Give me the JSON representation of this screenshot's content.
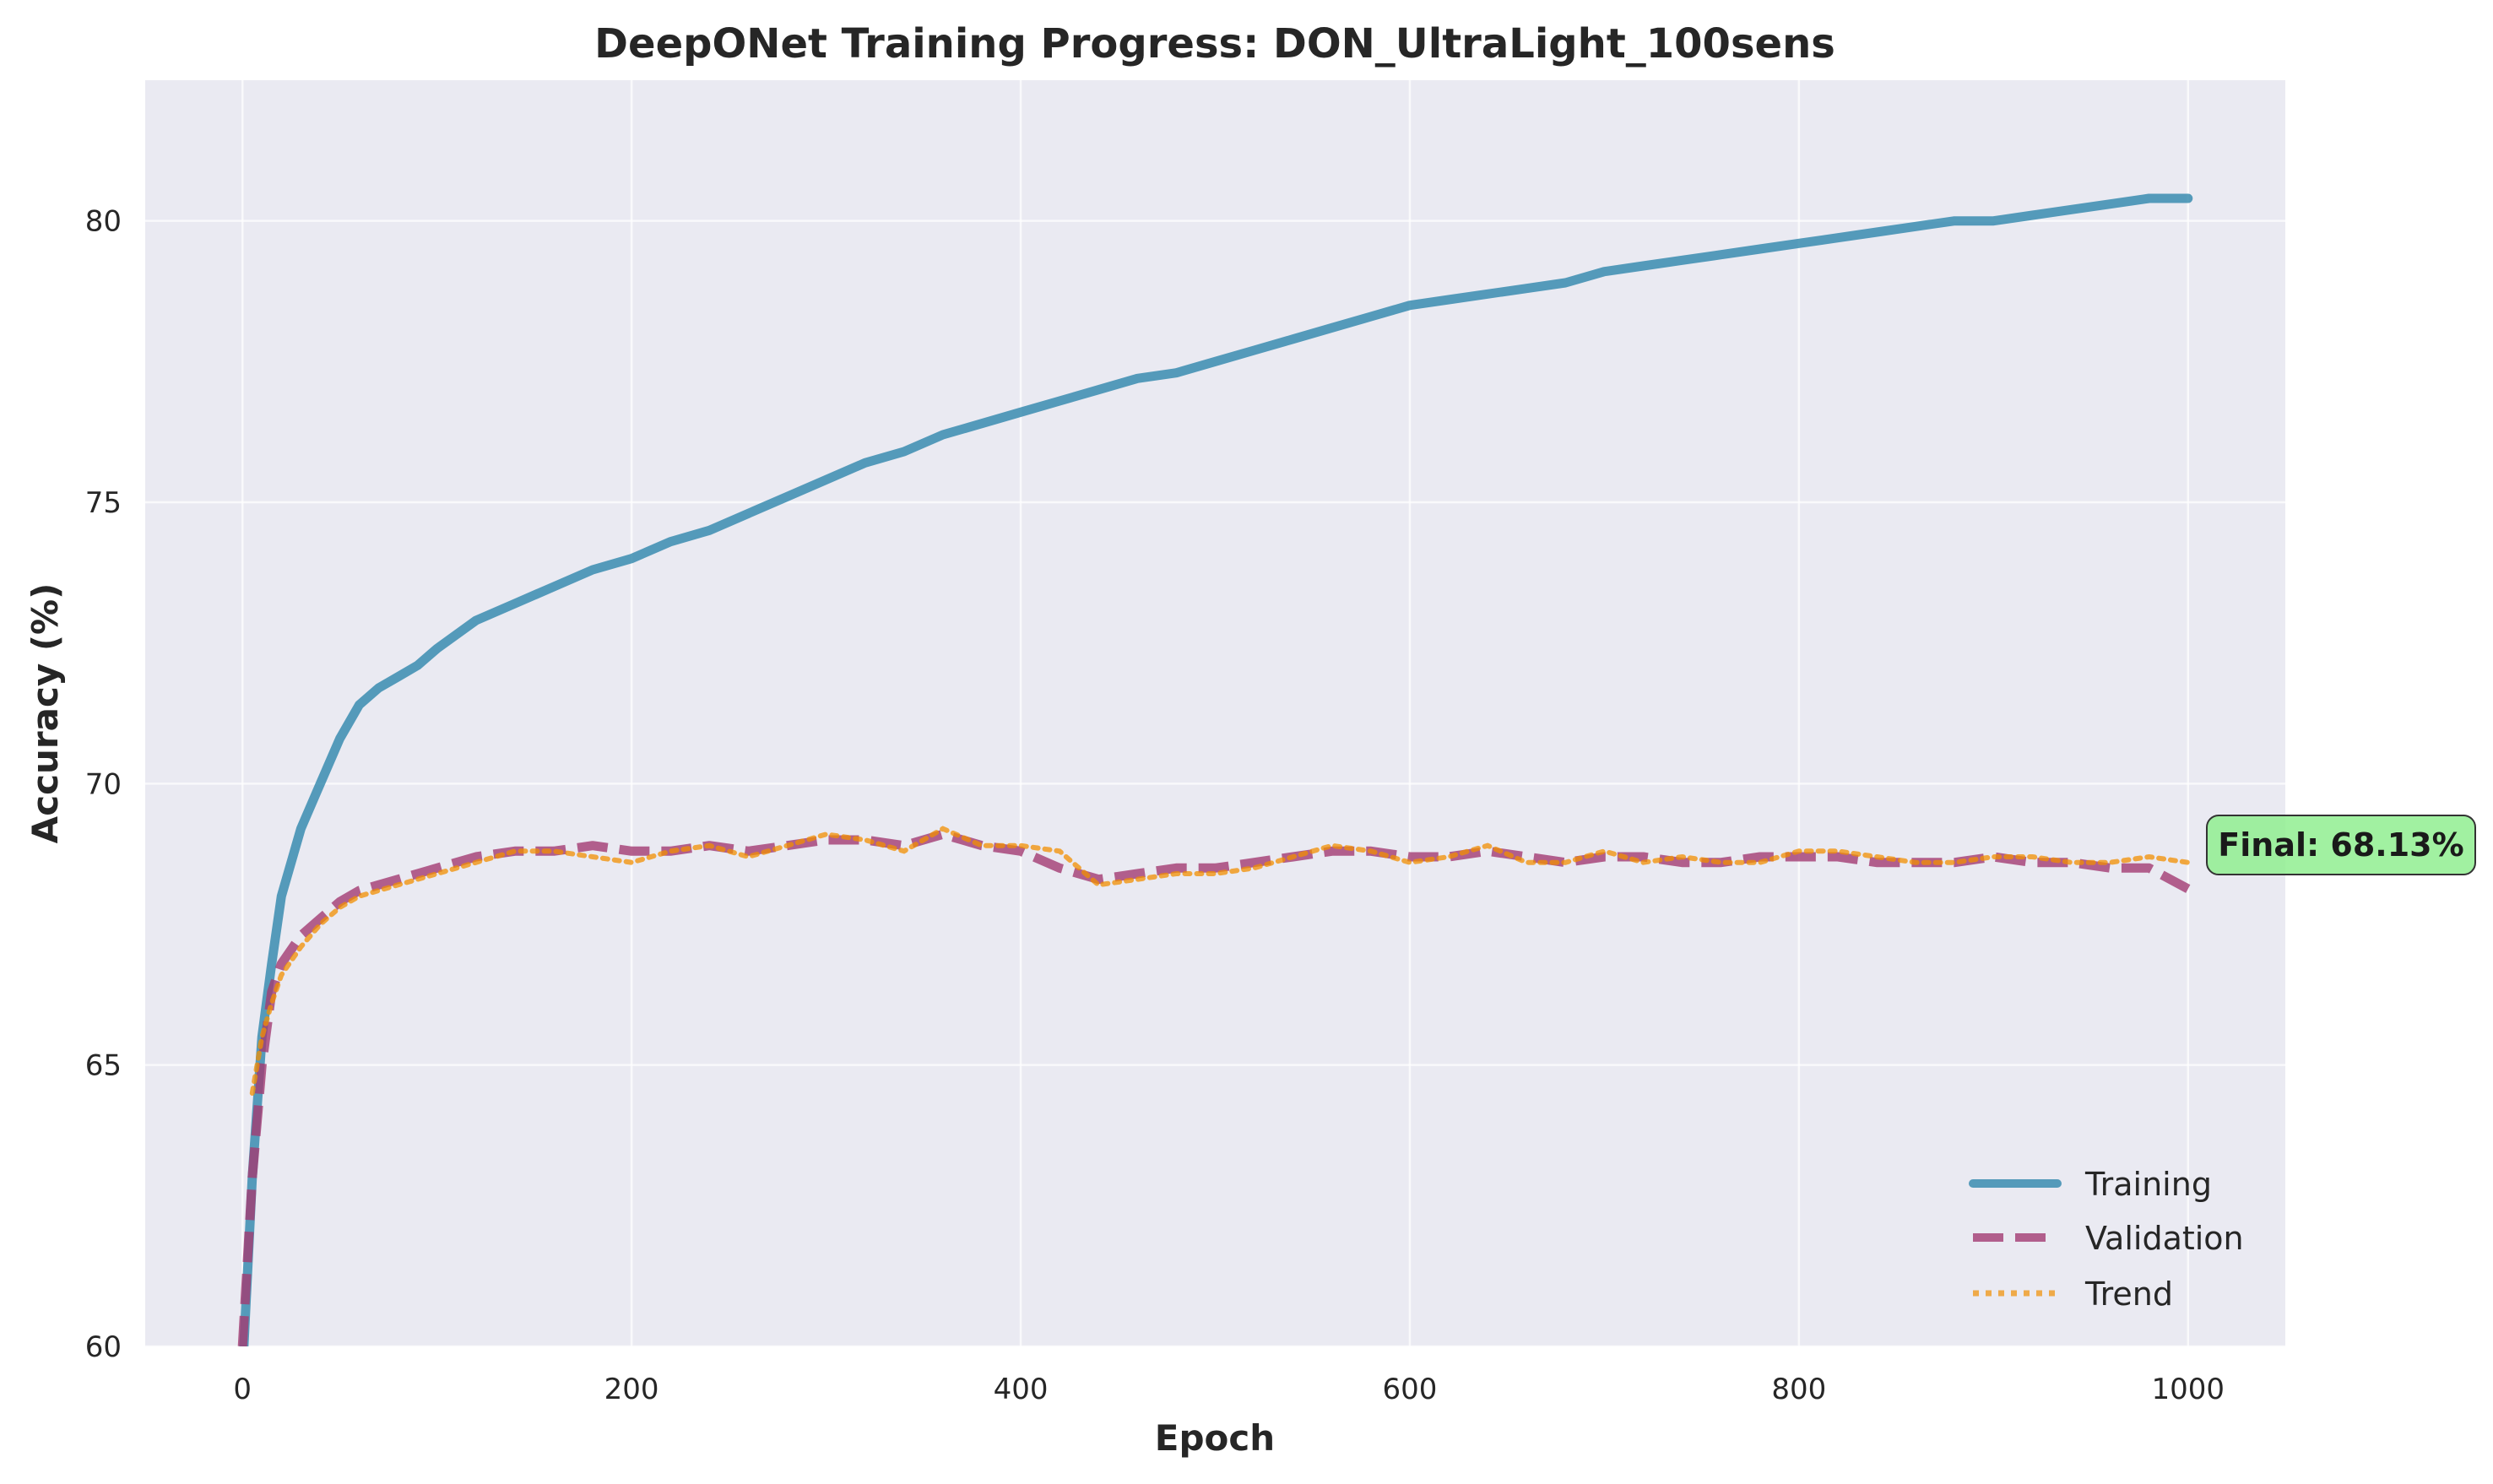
{
  "chart_data": {
    "type": "line",
    "title": "DeepONet Training Progress: DON_UltraLight_100sens",
    "xlabel": "Epoch",
    "ylabel": "Accuracy (%)",
    "xlim": [
      -50,
      1050
    ],
    "ylim": [
      60,
      82.5
    ],
    "xticks": [
      0,
      200,
      400,
      600,
      800,
      1000
    ],
    "yticks": [
      60,
      65,
      70,
      75,
      80
    ],
    "grid": true,
    "legend_position": "lower-right",
    "annotation": "Final: 68.13%",
    "series": [
      {
        "name": "Training",
        "color": "#2E86AB",
        "style": "solid",
        "x": [
          0,
          5,
          10,
          15,
          20,
          30,
          40,
          50,
          60,
          70,
          80,
          90,
          100,
          120,
          140,
          160,
          180,
          200,
          220,
          240,
          260,
          280,
          300,
          320,
          340,
          360,
          380,
          400,
          420,
          440,
          460,
          480,
          500,
          520,
          540,
          560,
          580,
          600,
          620,
          640,
          660,
          680,
          700,
          720,
          740,
          760,
          780,
          800,
          820,
          840,
          860,
          880,
          900,
          920,
          940,
          960,
          980,
          1000
        ],
        "values": [
          59.5,
          63.0,
          65.5,
          66.8,
          68.0,
          69.2,
          70.0,
          70.8,
          71.4,
          71.7,
          71.9,
          72.1,
          72.4,
          72.9,
          73.2,
          73.5,
          73.8,
          74.0,
          74.3,
          74.5,
          74.8,
          75.1,
          75.4,
          75.7,
          75.9,
          76.2,
          76.4,
          76.6,
          76.8,
          77.0,
          77.2,
          77.3,
          77.5,
          77.7,
          77.9,
          78.1,
          78.3,
          78.5,
          78.6,
          78.7,
          78.8,
          78.9,
          79.1,
          79.2,
          79.3,
          79.4,
          79.5,
          79.6,
          79.7,
          79.8,
          79.9,
          80.0,
          80.0,
          80.1,
          80.2,
          80.3,
          80.4,
          80.4
        ]
      },
      {
        "name": "Validation",
        "color": "#A23B72",
        "style": "dashed",
        "x": [
          0,
          5,
          10,
          15,
          20,
          30,
          40,
          50,
          60,
          70,
          80,
          90,
          100,
          120,
          140,
          160,
          180,
          200,
          220,
          240,
          260,
          280,
          300,
          320,
          340,
          360,
          380,
          400,
          420,
          440,
          460,
          480,
          500,
          520,
          540,
          560,
          580,
          600,
          620,
          640,
          660,
          680,
          700,
          720,
          740,
          760,
          780,
          800,
          820,
          840,
          860,
          880,
          900,
          920,
          940,
          960,
          980,
          1000
        ],
        "values": [
          60.0,
          63.0,
          65.0,
          66.3,
          66.8,
          67.3,
          67.6,
          67.9,
          68.1,
          68.2,
          68.3,
          68.4,
          68.5,
          68.7,
          68.8,
          68.8,
          68.9,
          68.8,
          68.8,
          68.9,
          68.8,
          68.9,
          69.0,
          69.0,
          68.9,
          69.1,
          68.9,
          68.8,
          68.5,
          68.3,
          68.4,
          68.5,
          68.5,
          68.6,
          68.7,
          68.8,
          68.8,
          68.7,
          68.7,
          68.8,
          68.7,
          68.6,
          68.7,
          68.7,
          68.6,
          68.6,
          68.7,
          68.7,
          68.7,
          68.6,
          68.6,
          68.6,
          68.7,
          68.6,
          68.6,
          68.5,
          68.5,
          68.13
        ]
      },
      {
        "name": "Trend",
        "color": "#F18F01",
        "style": "dotted",
        "x": [
          5,
          10,
          15,
          20,
          30,
          40,
          50,
          60,
          70,
          80,
          90,
          100,
          120,
          140,
          160,
          180,
          200,
          220,
          240,
          260,
          280,
          300,
          320,
          340,
          360,
          380,
          400,
          420,
          440,
          460,
          480,
          500,
          520,
          540,
          560,
          580,
          600,
          620,
          640,
          660,
          680,
          700,
          720,
          740,
          760,
          780,
          800,
          820,
          840,
          860,
          880,
          900,
          920,
          940,
          960,
          980,
          1000
        ],
        "values": [
          64.5,
          65.5,
          66.1,
          66.6,
          67.1,
          67.5,
          67.8,
          68.0,
          68.1,
          68.2,
          68.3,
          68.4,
          68.6,
          68.8,
          68.8,
          68.7,
          68.6,
          68.8,
          68.9,
          68.7,
          68.9,
          69.1,
          69.0,
          68.8,
          69.2,
          68.9,
          68.9,
          68.8,
          68.2,
          68.3,
          68.4,
          68.4,
          68.5,
          68.7,
          68.9,
          68.8,
          68.6,
          68.7,
          68.9,
          68.6,
          68.6,
          68.8,
          68.6,
          68.7,
          68.6,
          68.6,
          68.8,
          68.8,
          68.7,
          68.6,
          68.6,
          68.7,
          68.7,
          68.6,
          68.6,
          68.7,
          68.6
        ]
      }
    ]
  }
}
